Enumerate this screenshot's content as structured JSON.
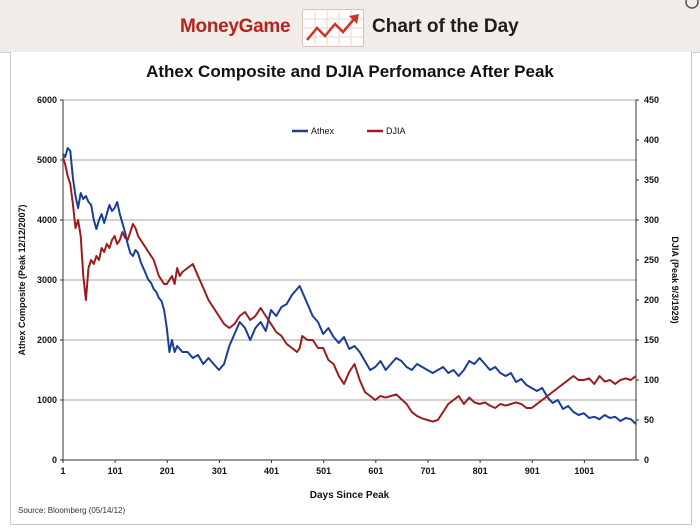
{
  "banner": {
    "brand": "MoneyGame",
    "title": "Chart of the Day",
    "icon": "rising-chart-arrow-icon",
    "accent_color": "#b3241e"
  },
  "source": "Source: Bloomberg (05/14/12)",
  "chart_data": {
    "type": "line",
    "title": "Athex Composite and DJIA Perfomance After Peak",
    "xlabel": "Days Since Peak",
    "ylabel": "Athex Composite (Peak 12/12/2007)",
    "y2label": "DJIA (Peak 9/3/1929)",
    "xlim": [
      1,
      1100
    ],
    "ylim": [
      0,
      6000
    ],
    "y2lim": [
      0,
      450
    ],
    "xticks": [
      1,
      101,
      201,
      301,
      401,
      501,
      601,
      701,
      801,
      901,
      1001
    ],
    "yticks": [
      0,
      1000,
      2000,
      3000,
      4000,
      5000,
      6000
    ],
    "y2ticks": [
      0,
      50,
      100,
      150,
      200,
      250,
      300,
      350,
      400,
      450
    ],
    "grid": "horizontal",
    "legend": "top",
    "series": [
      {
        "name": "Athex",
        "axis": "left",
        "color": "#1a3d9a",
        "x": [
          1,
          5,
          10,
          15,
          20,
          25,
          30,
          35,
          40,
          45,
          50,
          55,
          60,
          65,
          70,
          75,
          80,
          85,
          90,
          95,
          100,
          105,
          110,
          115,
          120,
          125,
          130,
          135,
          140,
          145,
          150,
          155,
          160,
          165,
          170,
          175,
          180,
          185,
          190,
          195,
          200,
          205,
          210,
          215,
          220,
          225,
          230,
          240,
          250,
          260,
          270,
          280,
          290,
          300,
          310,
          320,
          330,
          340,
          350,
          360,
          370,
          380,
          390,
          400,
          410,
          420,
          430,
          440,
          450,
          455,
          460,
          470,
          480,
          490,
          500,
          510,
          520,
          530,
          540,
          550,
          560,
          570,
          580,
          590,
          600,
          610,
          620,
          630,
          640,
          650,
          660,
          670,
          680,
          690,
          700,
          710,
          720,
          730,
          740,
          750,
          760,
          770,
          780,
          790,
          800,
          810,
          820,
          830,
          840,
          850,
          860,
          870,
          880,
          890,
          900,
          910,
          920,
          930,
          940,
          950,
          960,
          970,
          980,
          990,
          1000,
          1010,
          1020,
          1030,
          1040,
          1050,
          1060,
          1070,
          1080,
          1090,
          1100
        ],
        "values": [
          5100,
          5050,
          5200,
          5150,
          4700,
          4400,
          4200,
          4450,
          4350,
          4400,
          4300,
          4250,
          4000,
          3850,
          4000,
          4100,
          3950,
          4100,
          4250,
          4150,
          4200,
          4300,
          4100,
          3950,
          3800,
          3600,
          3450,
          3400,
          3500,
          3450,
          3300,
          3200,
          3100,
          3000,
          2950,
          2850,
          2800,
          2700,
          2650,
          2500,
          2200,
          1800,
          2000,
          1800,
          1900,
          1850,
          1800,
          1800,
          1700,
          1750,
          1600,
          1700,
          1600,
          1500,
          1600,
          1900,
          2100,
          2300,
          2200,
          2000,
          2200,
          2300,
          2150,
          2500,
          2400,
          2550,
          2600,
          2750,
          2850,
          2900,
          2800,
          2600,
          2400,
          2300,
          2100,
          2200,
          2050,
          1950,
          2050,
          1850,
          1900,
          1800,
          1650,
          1500,
          1550,
          1650,
          1500,
          1600,
          1700,
          1650,
          1550,
          1500,
          1600,
          1550,
          1500,
          1450,
          1500,
          1550,
          1450,
          1500,
          1400,
          1500,
          1650,
          1600,
          1700,
          1600,
          1500,
          1550,
          1450,
          1400,
          1450,
          1300,
          1350,
          1250,
          1200,
          1150,
          1200,
          1050,
          950,
          1000,
          850,
          900,
          800,
          750,
          780,
          700,
          720,
          680,
          750,
          700,
          720,
          650,
          700,
          680,
          600
        ]
      },
      {
        "name": "DJIA",
        "axis": "right",
        "color": "#9a1c1c",
        "x": [
          1,
          5,
          10,
          15,
          20,
          25,
          30,
          35,
          40,
          45,
          50,
          55,
          60,
          65,
          70,
          75,
          80,
          85,
          90,
          95,
          100,
          105,
          110,
          115,
          120,
          125,
          130,
          135,
          140,
          145,
          150,
          155,
          160,
          165,
          170,
          175,
          180,
          185,
          190,
          195,
          200,
          205,
          210,
          215,
          220,
          225,
          230,
          240,
          250,
          260,
          270,
          280,
          290,
          300,
          310,
          320,
          330,
          340,
          350,
          360,
          370,
          380,
          390,
          400,
          410,
          420,
          430,
          440,
          450,
          455,
          460,
          470,
          480,
          490,
          500,
          510,
          520,
          530,
          540,
          550,
          560,
          570,
          580,
          590,
          600,
          610,
          620,
          630,
          640,
          650,
          660,
          670,
          680,
          690,
          700,
          710,
          720,
          730,
          740,
          750,
          760,
          770,
          780,
          790,
          800,
          810,
          820,
          830,
          840,
          850,
          860,
          870,
          880,
          890,
          900,
          910,
          920,
          930,
          940,
          950,
          960,
          970,
          980,
          990,
          1000,
          1010,
          1020,
          1030,
          1040,
          1050,
          1060,
          1070,
          1080,
          1090,
          1100
        ],
        "values": [
          378,
          370,
          355,
          345,
          320,
          290,
          300,
          280,
          230,
          200,
          240,
          250,
          245,
          255,
          250,
          265,
          260,
          270,
          265,
          275,
          280,
          270,
          275,
          285,
          278,
          275,
          285,
          295,
          290,
          280,
          275,
          270,
          265,
          260,
          255,
          250,
          240,
          230,
          225,
          220,
          220,
          225,
          230,
          220,
          240,
          230,
          235,
          240,
          245,
          230,
          215,
          200,
          190,
          180,
          170,
          165,
          170,
          180,
          185,
          175,
          180,
          190,
          180,
          170,
          160,
          155,
          145,
          140,
          135,
          140,
          155,
          150,
          150,
          140,
          140,
          125,
          120,
          105,
          95,
          110,
          120,
          100,
          85,
          80,
          75,
          80,
          78,
          80,
          82,
          76,
          70,
          60,
          55,
          52,
          50,
          48,
          50,
          60,
          70,
          75,
          80,
          70,
          78,
          72,
          70,
          72,
          68,
          65,
          70,
          68,
          70,
          72,
          70,
          65,
          65,
          70,
          75,
          80,
          85,
          90,
          95,
          100,
          105,
          100,
          100,
          102,
          95,
          105,
          98,
          100,
          95,
          100,
          102,
          100,
          105
        ]
      }
    ]
  }
}
